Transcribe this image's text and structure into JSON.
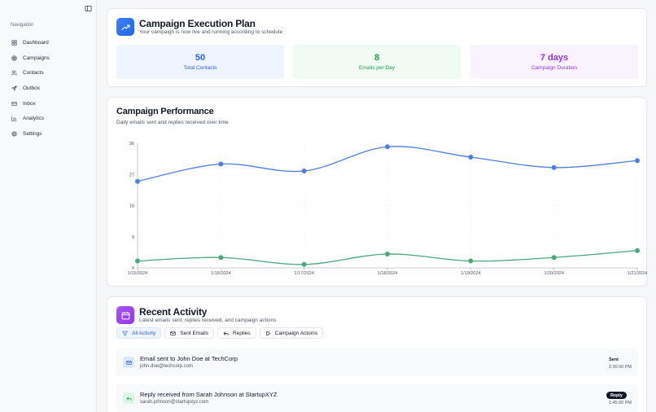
{
  "sidebar": {
    "title": "Navigation",
    "items": [
      {
        "label": "Dashboard",
        "icon": "dashboard-icon"
      },
      {
        "label": "Campaigns",
        "icon": "target-icon"
      },
      {
        "label": "Contacts",
        "icon": "users-icon"
      },
      {
        "label": "Outbox",
        "icon": "send-icon"
      },
      {
        "label": "Inbox",
        "icon": "mail-icon"
      },
      {
        "label": "Analytics",
        "icon": "bar-chart-icon"
      },
      {
        "label": "Settings",
        "icon": "gear-icon"
      }
    ]
  },
  "plan": {
    "title": "Campaign Execution Plan",
    "subtitle": "Your campaign is now live and running according to schedule",
    "stats": [
      {
        "value": "50",
        "label": "Total Contacts"
      },
      {
        "value": "8",
        "label": "Emails per Day"
      },
      {
        "value": "7 days",
        "label": "Campaign Duration"
      }
    ]
  },
  "performance": {
    "title": "Campaign Performance",
    "subtitle": "Daily emails sent and replies received over time"
  },
  "chart_data": {
    "type": "line",
    "x": [
      "1/15/2024",
      "1/16/2024",
      "1/17/2024",
      "1/18/2024",
      "1/19/2024",
      "1/20/2024",
      "1/21/2024"
    ],
    "series": [
      {
        "values": [
          25,
          30,
          28,
          35,
          32,
          29,
          31
        ],
        "color": "#4f80e1"
      },
      {
        "values": [
          2,
          3,
          1,
          4,
          2,
          3,
          5
        ],
        "color": "#4aa87a"
      }
    ],
    "yticks": [
      "0",
      "9",
      "18",
      "27",
      "36"
    ],
    "ylim": [
      0,
      36
    ],
    "grid": true
  },
  "activity": {
    "title": "Recent Activity",
    "subtitle": "Latest emails sent, replies received, and campaign actions",
    "filters": [
      "All Activity",
      "Sent Emails",
      "Replies",
      "Campaign Actions"
    ],
    "items": [
      {
        "title": "Email sent to John Doe at TechCorp",
        "sub": "john.doe@techcorp.com",
        "badge": "Sent",
        "time": "2:30:00 PM"
      },
      {
        "title": "Reply received from Sarah Johnson at StartupXYZ",
        "sub": "sarah.johnson@startupxyz.com",
        "badge": "Reply",
        "time": "1:45:00 PM"
      }
    ]
  },
  "colors": {
    "accent": "#2563eb",
    "green": "#16a34a",
    "purple": "#9333ea"
  }
}
